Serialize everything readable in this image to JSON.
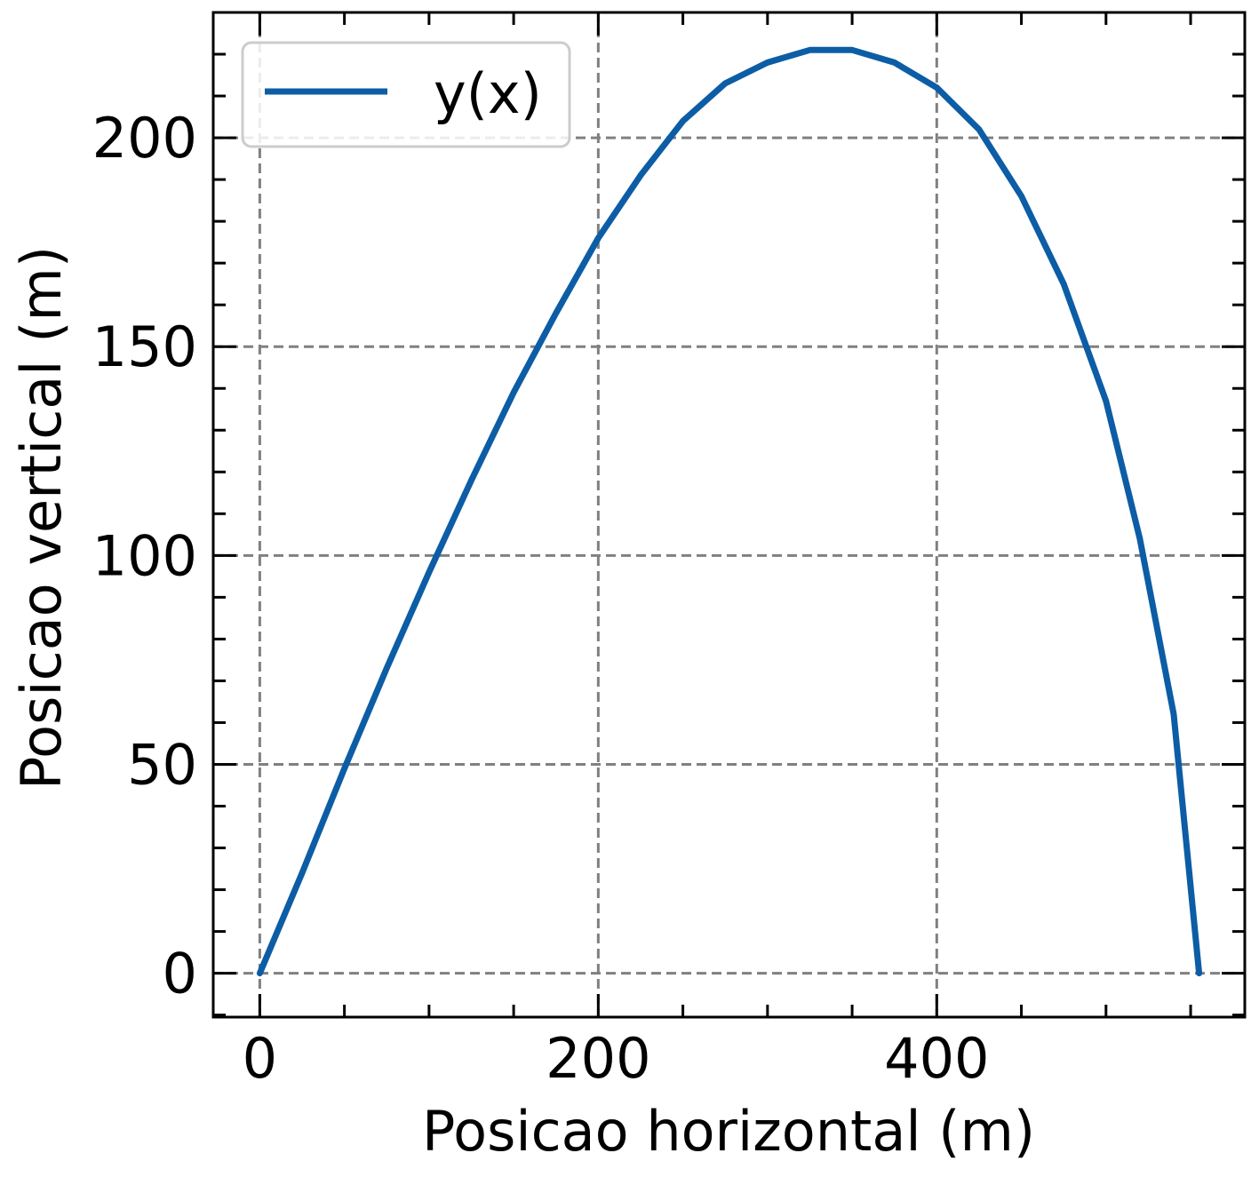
{
  "chart_data": {
    "type": "line",
    "title": "",
    "xlabel": "Posicao horizontal (m)",
    "ylabel": "Posicao vertical (m)",
    "xlim": [
      -27.5,
      582
    ],
    "ylim": [
      -10.5,
      230
    ],
    "x_ticks": [
      0,
      200,
      400
    ],
    "x_tick_labels": [
      "0",
      "200",
      "400"
    ],
    "y_ticks": [
      0,
      50,
      100,
      150,
      200
    ],
    "y_tick_labels": [
      "0",
      "50",
      "100",
      "150",
      "200"
    ],
    "x_minor_step": 50,
    "y_minor_step": 10,
    "grid": true,
    "legend_position": "top-left",
    "series": [
      {
        "name": "y(x)",
        "color": "#0c5da5",
        "points": [
          [
            0,
            0
          ],
          [
            25,
            24
          ],
          [
            50,
            49
          ],
          [
            75,
            73
          ],
          [
            100,
            96
          ],
          [
            125,
            118
          ],
          [
            150,
            139
          ],
          [
            175,
            158
          ],
          [
            200,
            176
          ],
          [
            225,
            191
          ],
          [
            250,
            204
          ],
          [
            275,
            213
          ],
          [
            300,
            218
          ],
          [
            325,
            221
          ],
          [
            350,
            221
          ],
          [
            375,
            218
          ],
          [
            400,
            212
          ],
          [
            425,
            202
          ],
          [
            450,
            186
          ],
          [
            475,
            165
          ],
          [
            500,
            137
          ],
          [
            520,
            104
          ],
          [
            540,
            62
          ],
          [
            555,
            0
          ]
        ]
      }
    ]
  }
}
